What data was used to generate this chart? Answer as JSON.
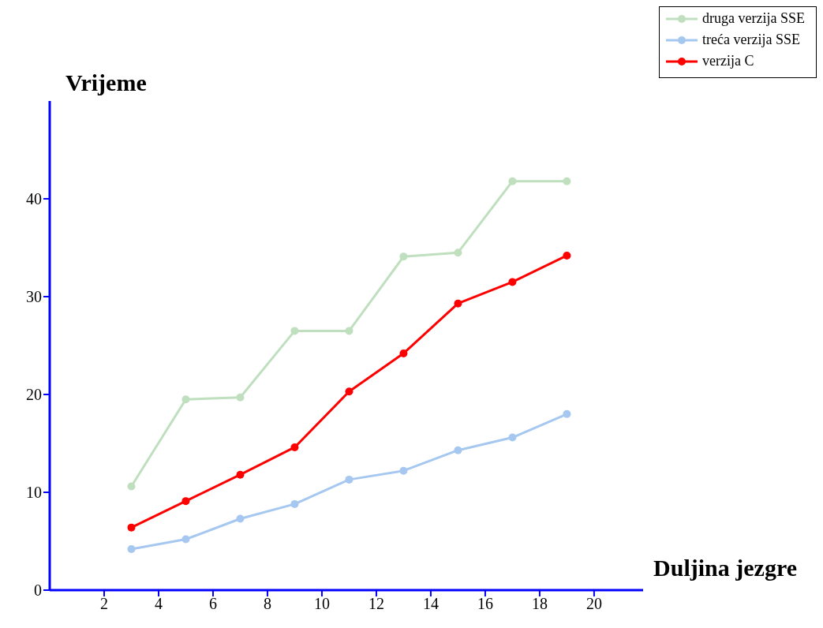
{
  "chart_data": {
    "type": "line",
    "xlabel": "Duljina jezgre",
    "ylabel": "Vrijeme",
    "x": [
      3,
      5,
      7,
      9,
      11,
      13,
      15,
      17,
      19
    ],
    "series": [
      {
        "name": "druga verzija SSE",
        "color": "#bfdfbf",
        "values": [
          10.6,
          19.5,
          19.7,
          26.5,
          26.5,
          34.1,
          34.5,
          41.8,
          41.8
        ]
      },
      {
        "name": "treća verzija SSE",
        "color": "#a6c8f0",
        "values": [
          4.2,
          5.2,
          7.3,
          8.8,
          11.3,
          12.2,
          14.3,
          15.6,
          18.0
        ]
      },
      {
        "name": "verzija C",
        "color": "#ff0000",
        "values": [
          6.4,
          9.1,
          11.8,
          14.6,
          20.3,
          24.2,
          29.3,
          31.5,
          34.2
        ]
      }
    ],
    "xlim": [
      0,
      21.8
    ],
    "xticks": [
      2,
      4,
      6,
      8,
      10,
      12,
      14,
      16,
      18,
      20
    ],
    "ylim": [
      0,
      50
    ],
    "yticks": [
      0,
      10,
      20,
      30,
      40
    ],
    "grid": false,
    "legend": "top right",
    "marker": "circle",
    "line_style": "solid"
  }
}
